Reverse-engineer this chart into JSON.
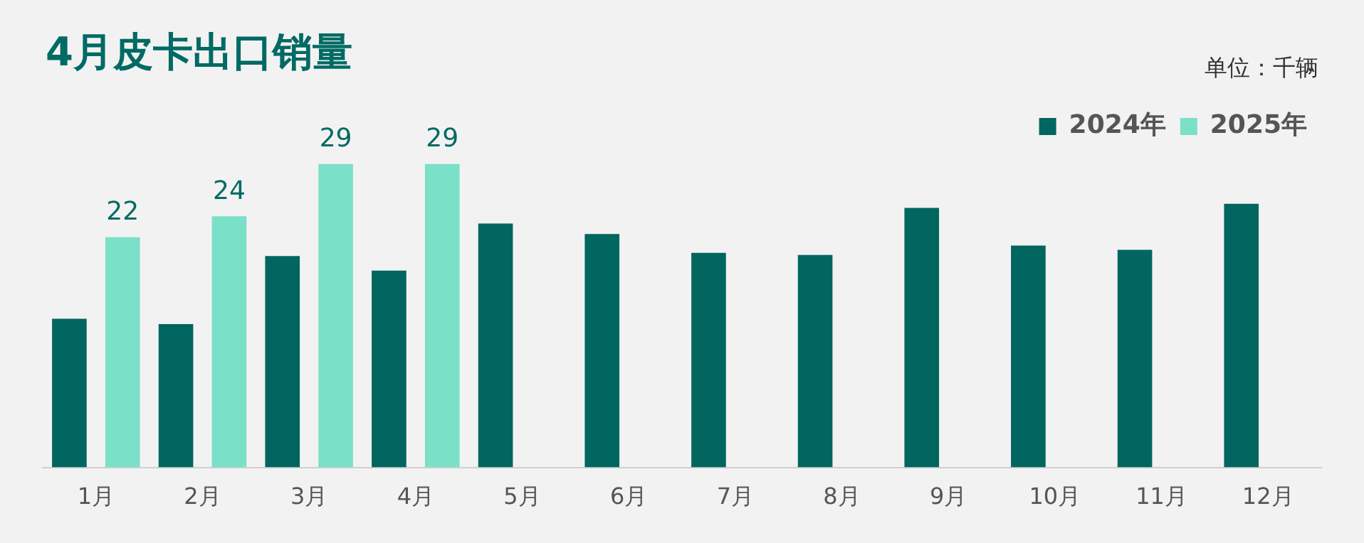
{
  "chart_data": {
    "type": "bar",
    "title": "4月皮卡出口销量",
    "subtitle": "单位：千辆",
    "categories": [
      "1月",
      "2月",
      "3月",
      "4月",
      "5月",
      "6月",
      "7月",
      "8月",
      "9月",
      "10月",
      "11月",
      "12月"
    ],
    "series": [
      {
        "name": "2024年",
        "color": "#00665f",
        "values": [
          14.2,
          13.7,
          20.2,
          18.8,
          23.3,
          22.3,
          20.5,
          20.3,
          24.8,
          21.2,
          20.8,
          25.2
        ]
      },
      {
        "name": "2025年",
        "color": "#7be0c8",
        "values": [
          22,
          24,
          29,
          29,
          null,
          null,
          null,
          null,
          null,
          null,
          null,
          null
        ],
        "value_labels": [
          "22",
          "24",
          "29",
          "29",
          null,
          null,
          null,
          null,
          null,
          null,
          null,
          null
        ]
      }
    ],
    "legend": "top right",
    "grid": false
  }
}
